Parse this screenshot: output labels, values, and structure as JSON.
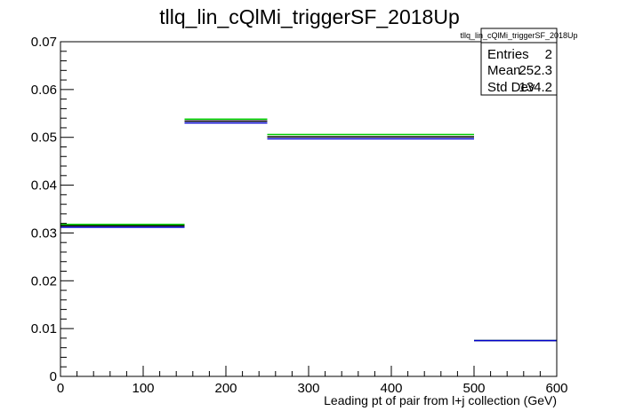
{
  "chart_data": {
    "type": "histogram",
    "title": "tllq_lin_cQlMi_triggerSF_2018Up",
    "xlabel": "Leading pt of pair from l+j collection (GeV)",
    "ylabel": "",
    "xlim": [
      0,
      600
    ],
    "ylim": [
      0,
      0.07
    ],
    "xticks": [
      "0",
      "100",
      "200",
      "300",
      "400",
      "500",
      "600"
    ],
    "yticks": [
      "0",
      "0.01",
      "0.02",
      "0.03",
      "0.04",
      "0.05",
      "0.06",
      "0.07"
    ],
    "bin_edges": [
      0,
      150,
      250,
      500,
      600
    ],
    "series": [
      {
        "values": [
          0.0318,
          0.0538,
          0.0506,
          0.0075
        ],
        "color": "#00cc00"
      },
      {
        "values": [
          0.0315,
          0.0534,
          0.0501,
          0.0075
        ],
        "color": "#000000"
      },
      {
        "values": [
          0.0312,
          0.053,
          0.0497,
          0.0075
        ],
        "color": "#0000cc"
      }
    ],
    "stats_box": {
      "name": "tllq_lin_cQlMi_triggerSF_2018Up",
      "rows": [
        {
          "label": "Entries",
          "value": "2"
        },
        {
          "label": "Mean",
          "value": "252.3"
        },
        {
          "label": "Std Dev",
          "value": "134.2"
        }
      ]
    },
    "grid": false
  }
}
